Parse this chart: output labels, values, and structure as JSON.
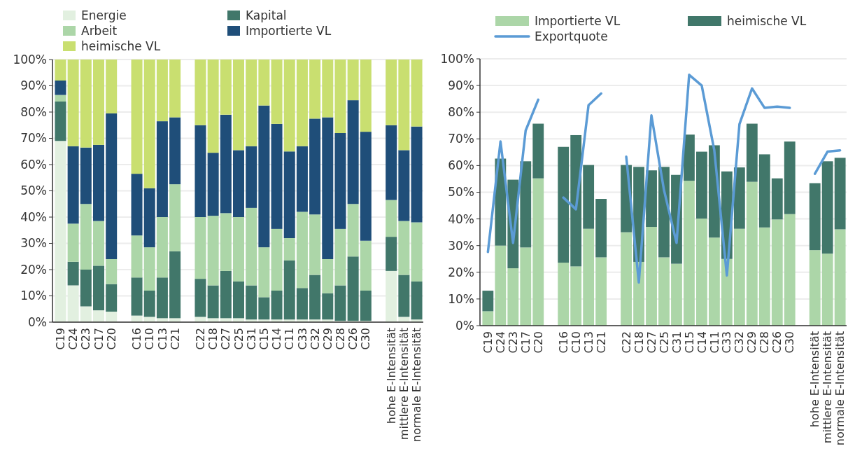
{
  "chart_data": [
    {
      "type": "bar",
      "stacked": true,
      "categories": [
        "C19",
        "C24",
        "C23",
        "C17",
        "C20",
        null,
        "C16",
        "C10",
        "C13",
        "C21",
        null,
        "C22",
        "C18",
        "C27",
        "C25",
        "C31",
        "C15",
        "C14",
        "C11",
        "C33",
        "C32",
        "C29",
        "C28",
        "C26",
        "C30",
        null,
        "hohe E-Intensität",
        "mittlere E-Intensität",
        "normale E-Intensität"
      ],
      "series": [
        {
          "name": "Energie",
          "color": "#e2f0e0",
          "values": [
            69,
            14,
            6,
            4.5,
            4,
            null,
            2.5,
            2,
            1.5,
            1.5,
            null,
            2,
            1.5,
            1.5,
            1.5,
            1,
            1,
            1,
            1,
            1,
            1,
            1,
            0.5,
            0.5,
            0.5,
            null,
            19.5,
            2,
            1
          ]
        },
        {
          "name": "Kapital",
          "color": "#41776a",
          "values": [
            15,
            9,
            14,
            17,
            10.5,
            null,
            14.5,
            10,
            15.5,
            25.5,
            null,
            14.5,
            12.5,
            18,
            14,
            13,
            8.5,
            11,
            22.5,
            12,
            17,
            10,
            13.5,
            24.5,
            11.5,
            null,
            13,
            16,
            14.5
          ]
        },
        {
          "name": "Arbeit",
          "color": "#acd6a8",
          "values": [
            2.5,
            14.5,
            25,
            17,
            9.5,
            null,
            16,
            16.5,
            23,
            25.5,
            null,
            23.5,
            26.5,
            22,
            24.5,
            29.5,
            19,
            23.5,
            8.5,
            29,
            23,
            13,
            21.5,
            20,
            19,
            null,
            14,
            20.5,
            22.5
          ]
        },
        {
          "name": "Importierte VL",
          "color": "#1f4e79",
          "values": [
            5.5,
            29.5,
            21.5,
            29,
            55.5,
            null,
            23.5,
            22.5,
            36.5,
            25.5,
            null,
            35,
            24,
            37.5,
            25.5,
            23.5,
            54,
            40,
            33,
            25,
            36.5,
            54,
            36.5,
            39.5,
            41.5,
            null,
            28.5,
            27,
            36.5
          ]
        },
        {
          "name": "heimische VL",
          "color": "#c9df70",
          "values": [
            8,
            33,
            33.5,
            32.5,
            20.5,
            null,
            43.5,
            49,
            23.5,
            22,
            null,
            25,
            35.5,
            21,
            34.5,
            33,
            17.5,
            24.5,
            35,
            33,
            22.5,
            22,
            28,
            15.5,
            27.5,
            null,
            25,
            34.5,
            25.5
          ]
        }
      ],
      "ylim": [
        0,
        100
      ],
      "yticks": [
        {
          "value": 0,
          "label": "0%"
        },
        {
          "value": 10,
          "label": "10%"
        },
        {
          "value": 20,
          "label": "20%"
        },
        {
          "value": 30,
          "label": "30%"
        },
        {
          "value": 40,
          "label": "40%"
        },
        {
          "value": 50,
          "label": "50%"
        },
        {
          "value": 60,
          "label": "60%"
        },
        {
          "value": 70,
          "label": "70%"
        },
        {
          "value": 80,
          "label": "80%"
        },
        {
          "value": 90,
          "label": "90%"
        },
        {
          "value": 100,
          "label": "100%"
        }
      ],
      "grid": "y",
      "legend": "top left"
    },
    {
      "type": "bar",
      "stacked": true,
      "categories": [
        "C19",
        "C24",
        "C23",
        "C17",
        "C20",
        null,
        "C16",
        "C10",
        "C13",
        "C21",
        null,
        "C22",
        "C18",
        "C27",
        "C25",
        "C31",
        "C15",
        "C14",
        "C11",
        "C33",
        "C32",
        "C29",
        "C28",
        "C26",
        "C30",
        null,
        "hohe E-Intensität",
        "mittlere E-Intensität",
        "normale E-Intensität"
      ],
      "series": [
        {
          "name": "Importierte VL",
          "color": "#acd6a8",
          "values": [
            5.4,
            30,
            21.5,
            29.3,
            55.2,
            null,
            23.6,
            22.2,
            36.3,
            25.6,
            null,
            35,
            23.9,
            37,
            25.6,
            23.2,
            54.3,
            40.1,
            33,
            25,
            36.3,
            53.9,
            36.8,
            39.8,
            41.8,
            null,
            28.3,
            27,
            36.1
          ]
        },
        {
          "name": "heimische VL",
          "color": "#41776a",
          "values": [
            7.7,
            32.6,
            33.2,
            32.3,
            20.5,
            null,
            43.4,
            49.2,
            23.9,
            21.9,
            null,
            25.2,
            35.6,
            21.2,
            33.9,
            33.3,
            17.3,
            25.1,
            34.6,
            32.8,
            23,
            21.8,
            27.4,
            15.4,
            27.2,
            null,
            25.1,
            34.6,
            26.8
          ]
        },
        {
          "name": "Exportquote",
          "type": "line",
          "color": "#5b9bd5",
          "values": [
            27.6,
            69,
            31,
            73.1,
            84.7,
            null,
            48,
            43.6,
            82.6,
            87,
            null,
            63.3,
            16.2,
            78.8,
            50.8,
            31,
            94,
            90,
            65.7,
            18.8,
            75.5,
            88.9,
            81.6,
            82.1,
            81.6,
            null,
            56.9,
            65.2,
            65.7
          ]
        }
      ],
      "ylim": [
        0,
        100
      ],
      "yticks": [
        {
          "value": 0,
          "label": "0%"
        },
        {
          "value": 10,
          "label": "10%"
        },
        {
          "value": 20,
          "label": "20%"
        },
        {
          "value": 30,
          "label": "30%"
        },
        {
          "value": 40,
          "label": "40%"
        },
        {
          "value": 50,
          "label": "50%"
        },
        {
          "value": 60,
          "label": "60%"
        },
        {
          "value": 70,
          "label": "70%"
        },
        {
          "value": 80,
          "label": "80%"
        },
        {
          "value": 90,
          "label": "90%"
        },
        {
          "value": 100,
          "label": "100%"
        }
      ],
      "grid": "y",
      "legend": "top"
    }
  ]
}
